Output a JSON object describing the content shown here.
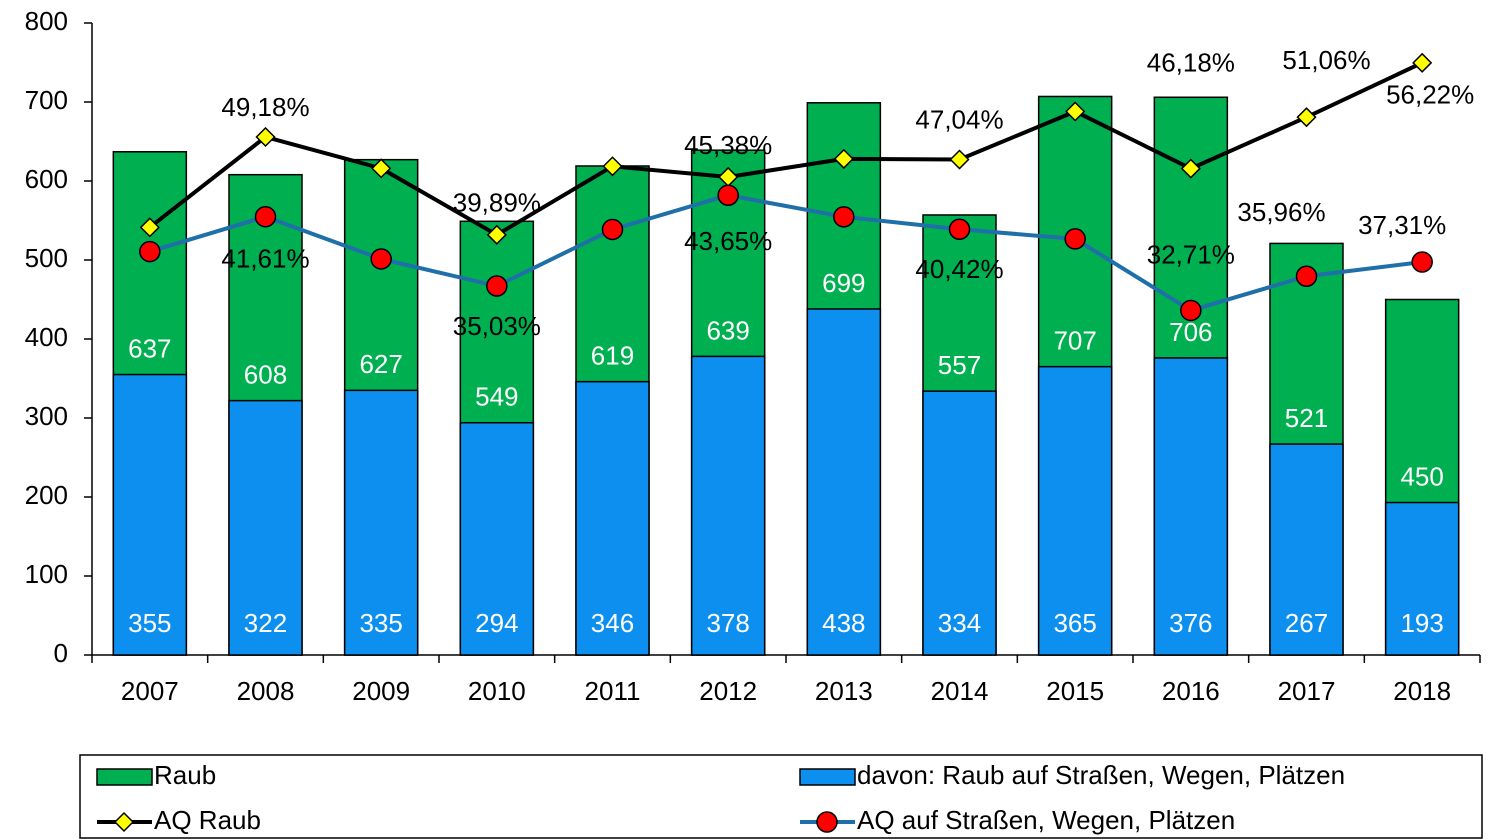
{
  "chart_data": {
    "type": "bar",
    "categories": [
      "2007",
      "2008",
      "2009",
      "2010",
      "2011",
      "2012",
      "2013",
      "2014",
      "2015",
      "2016",
      "2017",
      "2018"
    ],
    "ylim": [
      0,
      800
    ],
    "yticks": [
      0,
      100,
      200,
      300,
      400,
      500,
      600,
      700,
      800
    ],
    "y2lim": [
      0,
      60
    ],
    "series": [
      {
        "name": "Raub",
        "type": "bar",
        "color": "#00b050",
        "values": [
          637,
          608,
          627,
          549,
          619,
          639,
          699,
          557,
          707,
          706,
          521,
          450
        ]
      },
      {
        "name": "davon: Raub auf Straßen, Wegen, Plätzen",
        "type": "bar",
        "color": "#0d8ff0",
        "values": [
          355,
          322,
          335,
          294,
          346,
          378,
          438,
          334,
          365,
          376,
          267,
          193
        ]
      },
      {
        "name": "AQ Raub",
        "type": "line",
        "axis": "y2",
        "color": "#000000",
        "marker_color": "#ffff00",
        "values": [
          40.6,
          49.18,
          46.2,
          39.89,
          46.4,
          45.38,
          47.1,
          47.04,
          51.6,
          46.18,
          51.06,
          56.22
        ],
        "value_labels": [
          null,
          "49,18%",
          null,
          "39,89%",
          null,
          "45,38%",
          null,
          "47,04%",
          null,
          "46,18%",
          "51,06%",
          "56,22%"
        ]
      },
      {
        "name": "AQ auf Straßen, Wegen, Plätzen",
        "type": "line",
        "axis": "y2",
        "color": "#1f6fa8",
        "marker_color": "#ff0000",
        "values": [
          38.3,
          41.61,
          37.6,
          35.03,
          40.4,
          43.65,
          41.6,
          40.42,
          39.5,
          32.71,
          35.96,
          37.31
        ],
        "value_labels": [
          null,
          "41,61%",
          null,
          "35,03%",
          null,
          "43,65%",
          null,
          "40,42%",
          null,
          "32,71%",
          "35,96%",
          "37,31%"
        ]
      }
    ]
  }
}
